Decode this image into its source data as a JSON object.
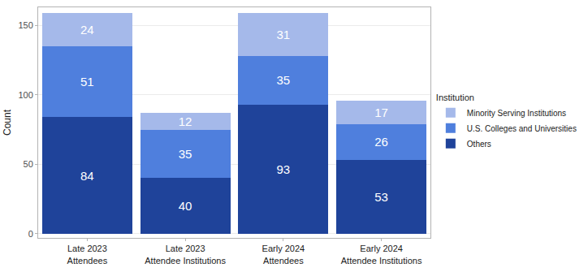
{
  "chart_data": {
    "type": "bar",
    "stacked": true,
    "data_labels": true,
    "grid": true,
    "legend": "right",
    "legend_title": "Institution",
    "y_label": "Count",
    "categories": [
      "Late 2023\nAttendees",
      "Late 2023\nAttendee Institutions",
      "Early 2024\nAttendees",
      "Early 2024\nAttendee Institutions"
    ],
    "series": [
      {
        "name": "Others",
        "color": "#1f439a",
        "values": [
          84,
          40,
          93,
          53
        ]
      },
      {
        "name": "U.S. Colleges and Universities",
        "color": "#4f7fdd",
        "values": [
          51,
          35,
          35,
          26
        ]
      },
      {
        "name": "Minority Serving Institutions",
        "color": "#a5b9ea",
        "values": [
          24,
          12,
          31,
          17
        ]
      }
    ],
    "ylim": [
      -3,
      163
    ],
    "yticks": [
      0,
      50,
      100,
      150
    ]
  }
}
